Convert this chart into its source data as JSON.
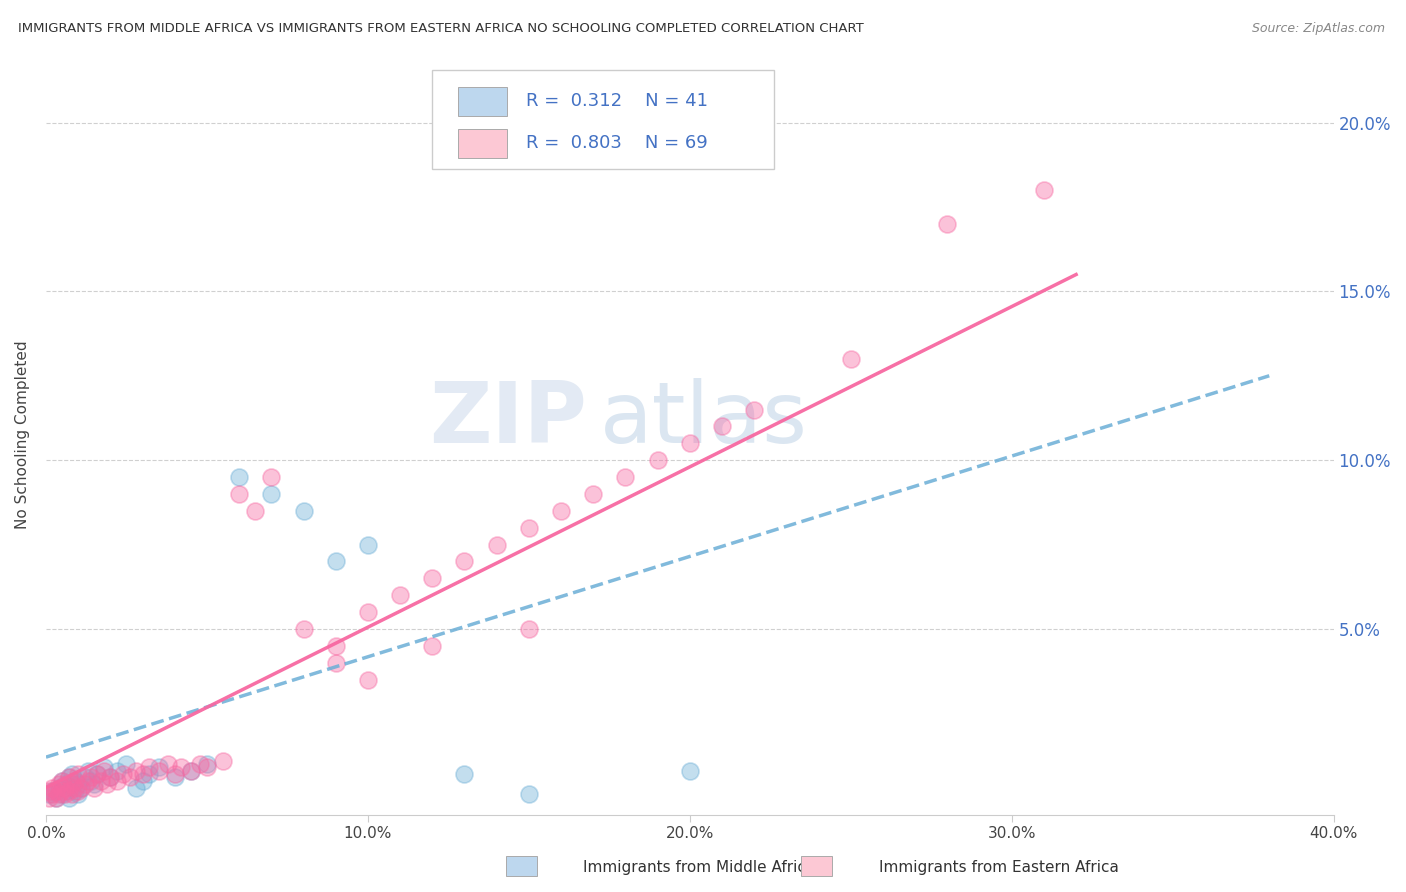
{
  "title": "IMMIGRANTS FROM MIDDLE AFRICA VS IMMIGRANTS FROM EASTERN AFRICA NO SCHOOLING COMPLETED CORRELATION CHART",
  "source": "Source: ZipAtlas.com",
  "ylabel": "No Schooling Completed",
  "xlim": [
    0.0,
    0.4
  ],
  "ylim": [
    -0.005,
    0.22
  ],
  "xtick_labels": [
    "0.0%",
    "10.0%",
    "20.0%",
    "30.0%",
    "40.0%"
  ],
  "xtick_vals": [
    0.0,
    0.1,
    0.2,
    0.3,
    0.4
  ],
  "ytick_labels": [
    "5.0%",
    "10.0%",
    "15.0%",
    "20.0%"
  ],
  "ytick_vals": [
    0.05,
    0.1,
    0.15,
    0.2
  ],
  "blue_R": 0.312,
  "blue_N": 41,
  "pink_R": 0.803,
  "pink_N": 69,
  "blue_color": "#6baed6",
  "pink_color": "#f768a1",
  "blue_legend_color": "#bdd7ee",
  "pink_legend_color": "#fcc8d4",
  "watermark": "ZIPatlas",
  "legend_label_blue": "Immigrants from Middle Africa",
  "legend_label_pink": "Immigrants from Eastern Africa",
  "blue_scatter_x": [
    0.001,
    0.002,
    0.003,
    0.004,
    0.005,
    0.005,
    0.006,
    0.006,
    0.007,
    0.007,
    0.008,
    0.008,
    0.009,
    0.009,
    0.01,
    0.01,
    0.011,
    0.012,
    0.013,
    0.014,
    0.015,
    0.016,
    0.018,
    0.02,
    0.022,
    0.025,
    0.028,
    0.03,
    0.032,
    0.035,
    0.04,
    0.045,
    0.05,
    0.06,
    0.07,
    0.08,
    0.09,
    0.1,
    0.13,
    0.15,
    0.2
  ],
  "blue_scatter_y": [
    0.001,
    0.002,
    0.0,
    0.003,
    0.001,
    0.005,
    0.002,
    0.004,
    0.0,
    0.006,
    0.003,
    0.007,
    0.002,
    0.005,
    0.001,
    0.004,
    0.003,
    0.006,
    0.008,
    0.005,
    0.004,
    0.007,
    0.009,
    0.006,
    0.008,
    0.01,
    0.003,
    0.005,
    0.007,
    0.009,
    0.006,
    0.008,
    0.01,
    0.095,
    0.09,
    0.085,
    0.07,
    0.075,
    0.007,
    0.001,
    0.008
  ],
  "pink_scatter_x": [
    0.001,
    0.001,
    0.002,
    0.002,
    0.003,
    0.003,
    0.004,
    0.004,
    0.005,
    0.005,
    0.006,
    0.006,
    0.007,
    0.007,
    0.008,
    0.008,
    0.009,
    0.009,
    0.01,
    0.01,
    0.011,
    0.012,
    0.013,
    0.014,
    0.015,
    0.016,
    0.017,
    0.018,
    0.019,
    0.02,
    0.022,
    0.024,
    0.026,
    0.028,
    0.03,
    0.032,
    0.035,
    0.038,
    0.04,
    0.042,
    0.045,
    0.048,
    0.05,
    0.055,
    0.06,
    0.065,
    0.07,
    0.08,
    0.09,
    0.1,
    0.11,
    0.12,
    0.13,
    0.14,
    0.15,
    0.16,
    0.17,
    0.18,
    0.19,
    0.2,
    0.21,
    0.22,
    0.25,
    0.09,
    0.1,
    0.12,
    0.15,
    0.28,
    0.31
  ],
  "pink_scatter_y": [
    0.0,
    0.002,
    0.001,
    0.003,
    0.0,
    0.002,
    0.001,
    0.004,
    0.002,
    0.005,
    0.001,
    0.003,
    0.002,
    0.006,
    0.001,
    0.004,
    0.003,
    0.005,
    0.002,
    0.007,
    0.003,
    0.004,
    0.005,
    0.006,
    0.003,
    0.007,
    0.005,
    0.008,
    0.004,
    0.006,
    0.005,
    0.007,
    0.006,
    0.008,
    0.007,
    0.009,
    0.008,
    0.01,
    0.007,
    0.009,
    0.008,
    0.01,
    0.009,
    0.011,
    0.09,
    0.085,
    0.095,
    0.05,
    0.045,
    0.055,
    0.06,
    0.065,
    0.07,
    0.075,
    0.08,
    0.085,
    0.09,
    0.095,
    0.1,
    0.105,
    0.11,
    0.115,
    0.13,
    0.04,
    0.035,
    0.045,
    0.05,
    0.17,
    0.18
  ],
  "blue_regline_x": [
    0.0,
    0.38
  ],
  "blue_regline_y": [
    0.012,
    0.125
  ],
  "pink_regline_x": [
    0.0,
    0.32
  ],
  "pink_regline_y": [
    0.003,
    0.155
  ]
}
